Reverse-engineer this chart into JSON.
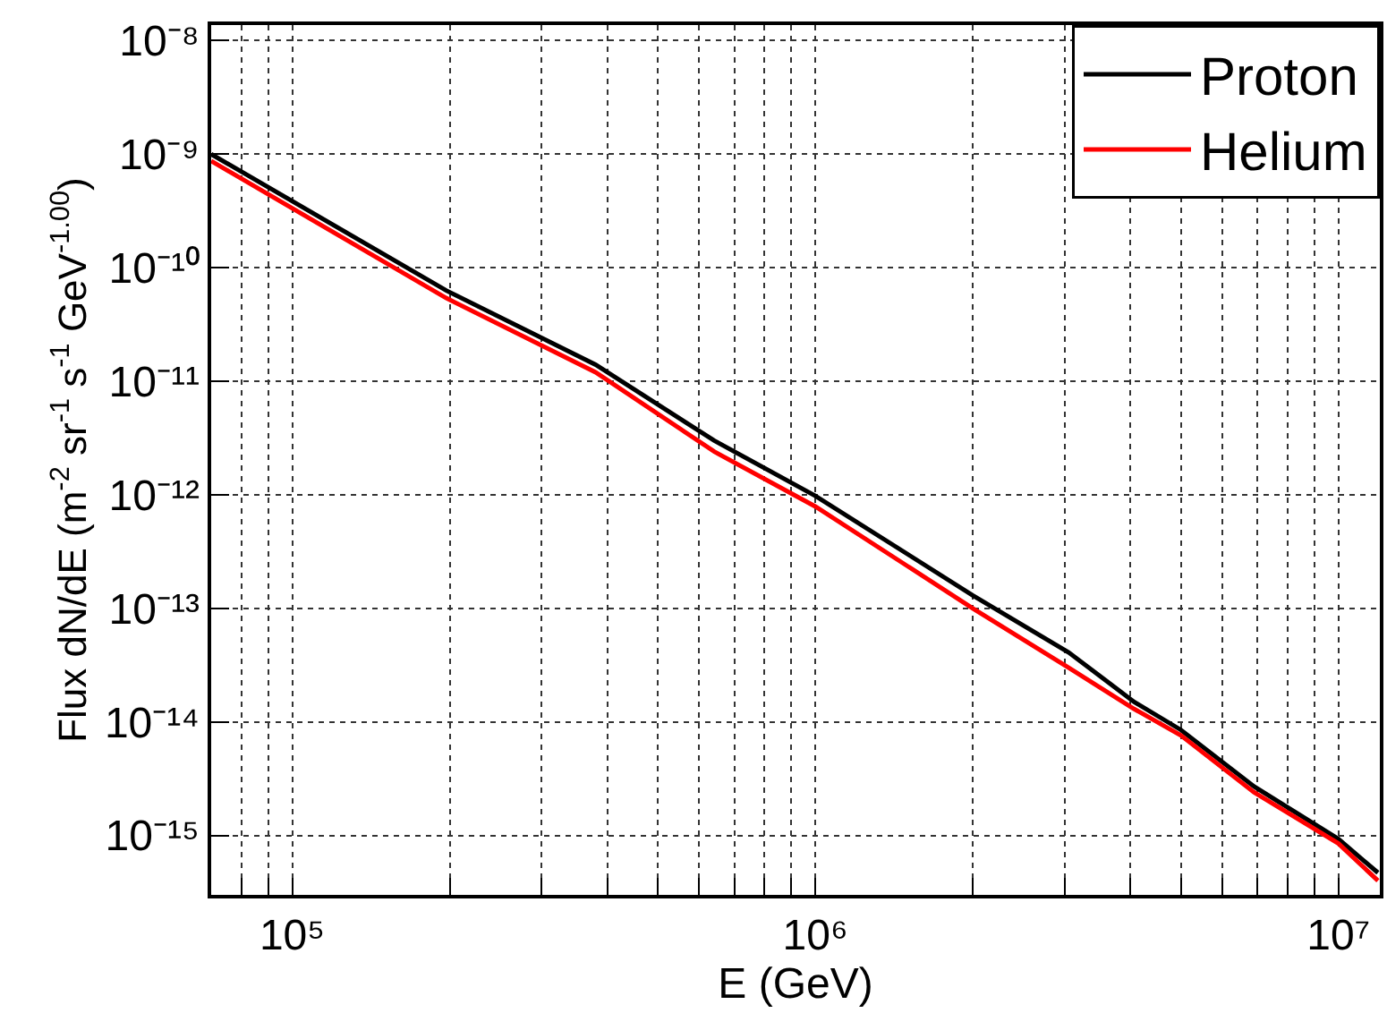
{
  "chart_data": {
    "type": "line",
    "xlabel": "E (GeV)",
    "ylabel": "Flux dN/dE (m$^{-2}$ sr$^{-1}$ s$^{-1}$ GeV$^{-1.00}$)",
    "x": [
      70000,
      197000,
      380000,
      641000,
      1000000,
      2000000,
      3050000,
      4070000,
      5000000,
      6900000,
      10000000,
      11900000
    ],
    "series": [
      {
        "name": "Proton",
        "color": "#000000",
        "values": [
          1e-09,
          6.3e-11,
          1.4e-11,
          3e-12,
          9.8e-13,
          1.3e-13,
          4.1e-14,
          1.5e-14,
          8.5e-15,
          2.7e-15,
          9.3e-16,
          4.7e-16
        ]
      },
      {
        "name": "Helium",
        "color": "#ff0000",
        "values": [
          8.7e-10,
          5.4e-11,
          1.2e-11,
          2.4e-12,
          7.9e-13,
          1e-13,
          3e-14,
          1.3e-14,
          7.6e-15,
          2.4e-15,
          8.5e-16,
          4e-16
        ]
      }
    ],
    "log": "xy",
    "xlim": [
      70000,
      12000000
    ],
    "ylim": [
      3e-16,
      1.37e-08
    ],
    "xticks": [
      {
        "value": 80000,
        "label": null
      },
      {
        "value": 90000,
        "label": null
      },
      {
        "value": 100000,
        "label": "10⁵"
      },
      {
        "value": 200000,
        "label": null
      },
      {
        "value": 300000,
        "label": null
      },
      {
        "value": 400000,
        "label": null
      },
      {
        "value": 500000,
        "label": null
      },
      {
        "value": 600000,
        "label": null
      },
      {
        "value": 700000,
        "label": null
      },
      {
        "value": 800000,
        "label": null
      },
      {
        "value": 900000,
        "label": null
      },
      {
        "value": 1000000,
        "label": "10⁶"
      },
      {
        "value": 2000000,
        "label": null
      },
      {
        "value": 3000000,
        "label": null
      },
      {
        "value": 4000000,
        "label": null
      },
      {
        "value": 5000000,
        "label": null
      },
      {
        "value": 6000000,
        "label": null
      },
      {
        "value": 7000000,
        "label": null
      },
      {
        "value": 8000000,
        "label": null
      },
      {
        "value": 9000000,
        "label": null
      },
      {
        "value": 10000000,
        "label": "10⁷"
      }
    ],
    "yticks": [
      {
        "value": 1e-15,
        "label": "10⁻¹⁵"
      },
      {
        "value": 1e-14,
        "label": "10⁻¹⁴"
      },
      {
        "value": 1e-13,
        "label": "10⁻¹³"
      },
      {
        "value": 1e-12,
        "label": "10⁻¹²"
      },
      {
        "value": 1e-11,
        "label": "10⁻¹¹"
      },
      {
        "value": 1e-10,
        "label": "10⁻¹⁰"
      },
      {
        "value": 1e-09,
        "label": "10⁻⁹"
      },
      {
        "value": 1e-08,
        "label": "10⁻⁸"
      }
    ],
    "grid": true,
    "legend": "top right",
    "marker": "none",
    "line_style": "solid"
  }
}
